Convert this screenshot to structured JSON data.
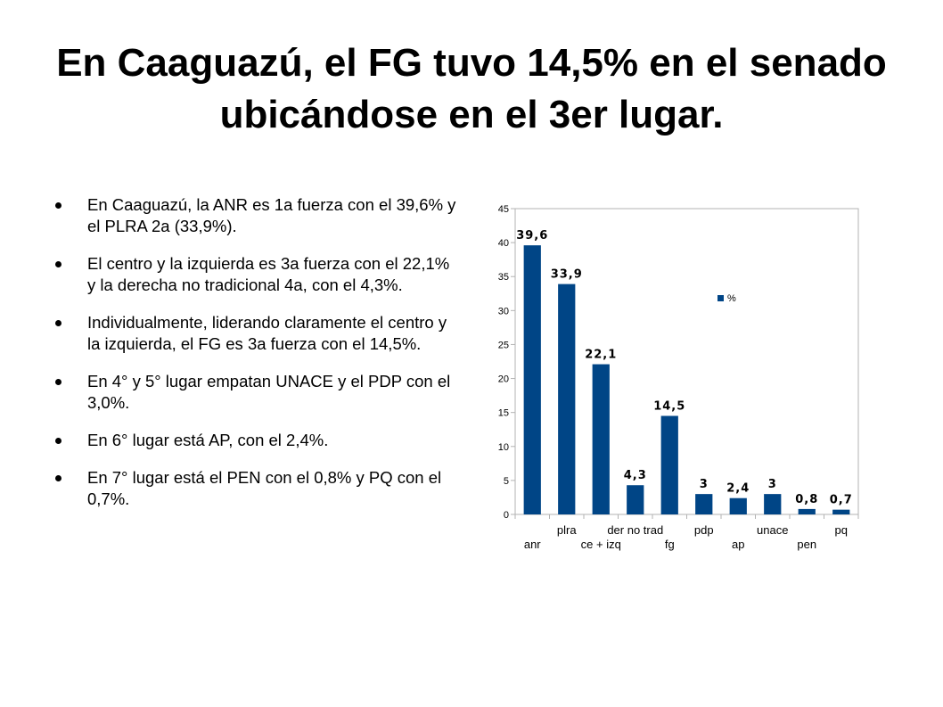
{
  "slide": {
    "title": "En Caaguazú, el FG tuvo 14,5% en el senado ubicándose en el 3er lugar.",
    "bullets": [
      "En Caaguazú, la ANR es 1a fuerza con el 39,6% y el PLRA 2a (33,9%).",
      "El centro y la izquierda es 3a fuerza con el 22,1% y la derecha no tradicional 4a, con el 4,3%.",
      "Individualmente, liderando claramente el centro y la izquierda, el FG es 3a fuerza con el 14,5%.",
      "En 4° y 5° lugar empatan UNACE y el PDP con el 3,0%.",
      "En 6° lugar está AP, con el 2,4%.",
      "En 7° lugar está el PEN con el 0,8% y PQ con el 0,7%."
    ]
  },
  "chart_data": {
    "type": "bar",
    "categories": [
      "anr",
      "plra",
      "ce + izq",
      "der no trad",
      "fg",
      "pdp",
      "ap",
      "unace",
      "pen",
      "pq"
    ],
    "series": [
      {
        "name": "%",
        "values": [
          39.6,
          33.9,
          22.1,
          4.3,
          14.5,
          3,
          2.4,
          3,
          0.8,
          0.7
        ],
        "labels": [
          "39,6",
          "33,9",
          "22,1",
          "4,3",
          "14,5",
          "3",
          "2,4",
          "3",
          "0,8",
          "0,7"
        ],
        "color": "#004586"
      }
    ],
    "yticks": [
      0,
      5,
      10,
      15,
      20,
      25,
      30,
      35,
      40,
      45
    ],
    "ylim": [
      0,
      45
    ],
    "title": "",
    "xlabel": "",
    "ylabel": "",
    "grid": false,
    "legend": "upper-right inside plot",
    "frame_color": "#b3b3b3"
  }
}
